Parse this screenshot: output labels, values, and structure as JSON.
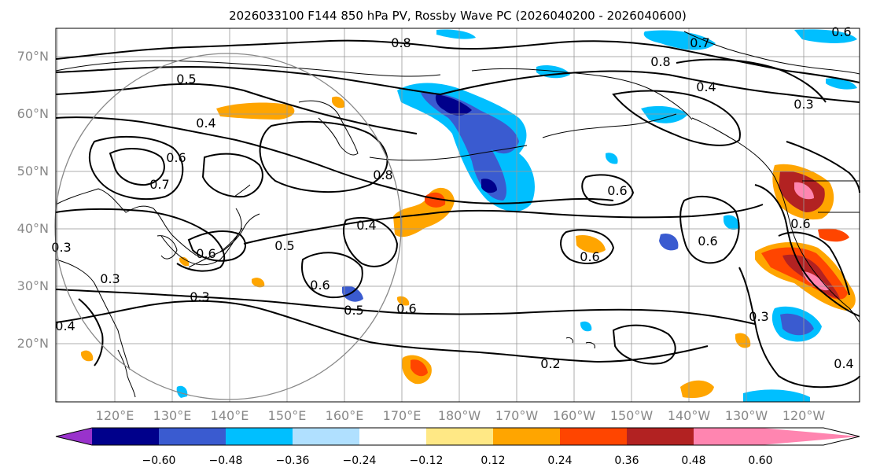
{
  "title": "2026033100 F144 850 hPa PV, Rossby Wave PC (2026040200 - 2026040600)",
  "latitudes": [
    "70°N",
    "60°N",
    "50°N",
    "40°N",
    "30°N",
    "20°N"
  ],
  "longitudes": [
    "120°E",
    "130°E",
    "140°E",
    "150°E",
    "160°E",
    "170°E",
    "180°W",
    "170°W",
    "160°W",
    "150°W",
    "140°W",
    "130°W",
    "120°W"
  ],
  "contour_labels": [
    {
      "text": "0.8"
    },
    {
      "text": "0.7"
    },
    {
      "text": "0.6"
    },
    {
      "text": "0.8"
    },
    {
      "text": "0.4"
    },
    {
      "text": "0.3"
    },
    {
      "text": "0.5"
    },
    {
      "text": "0.4"
    },
    {
      "text": "0.6"
    },
    {
      "text": "0.7"
    },
    {
      "text": "0.8"
    },
    {
      "text": "0.6"
    },
    {
      "text": "0.4"
    },
    {
      "text": "0.5"
    },
    {
      "text": "0.6"
    },
    {
      "text": "0.5"
    },
    {
      "text": "0.6"
    },
    {
      "text": "0.3"
    },
    {
      "text": "0.3"
    },
    {
      "text": "0.4"
    },
    {
      "text": "0.6"
    },
    {
      "text": "0.6"
    },
    {
      "text": "0.6"
    },
    {
      "text": "0.3"
    },
    {
      "text": "0.2"
    },
    {
      "text": "0.4"
    },
    {
      "text": "0.3"
    },
    {
      "text": "0.6"
    }
  ],
  "colorbar": {
    "ticks": [
      "−0.60",
      "−0.48",
      "−0.36",
      "−0.24",
      "−0.12",
      "0.12",
      "0.24",
      "0.36",
      "0.48",
      "0.60"
    ],
    "colors": [
      "#9932cc",
      "#00008b",
      "#3a5bd0",
      "#00bfff",
      "#b0e0ff",
      "#ffffff",
      "#ffe885",
      "#ffa500",
      "#ff4500",
      "#b22222",
      "#ff85b0"
    ]
  },
  "shading_colors": {
    "blue_dark": "#00008b",
    "blue_mid": "#3a5bd0",
    "blue_light": "#00bfff",
    "blue_pale": "#b0e0ff",
    "yellow": "#ffe885",
    "orange": "#ffa500",
    "red_orange": "#ff4500",
    "dark_red": "#b22222",
    "pink": "#ff85b0"
  }
}
